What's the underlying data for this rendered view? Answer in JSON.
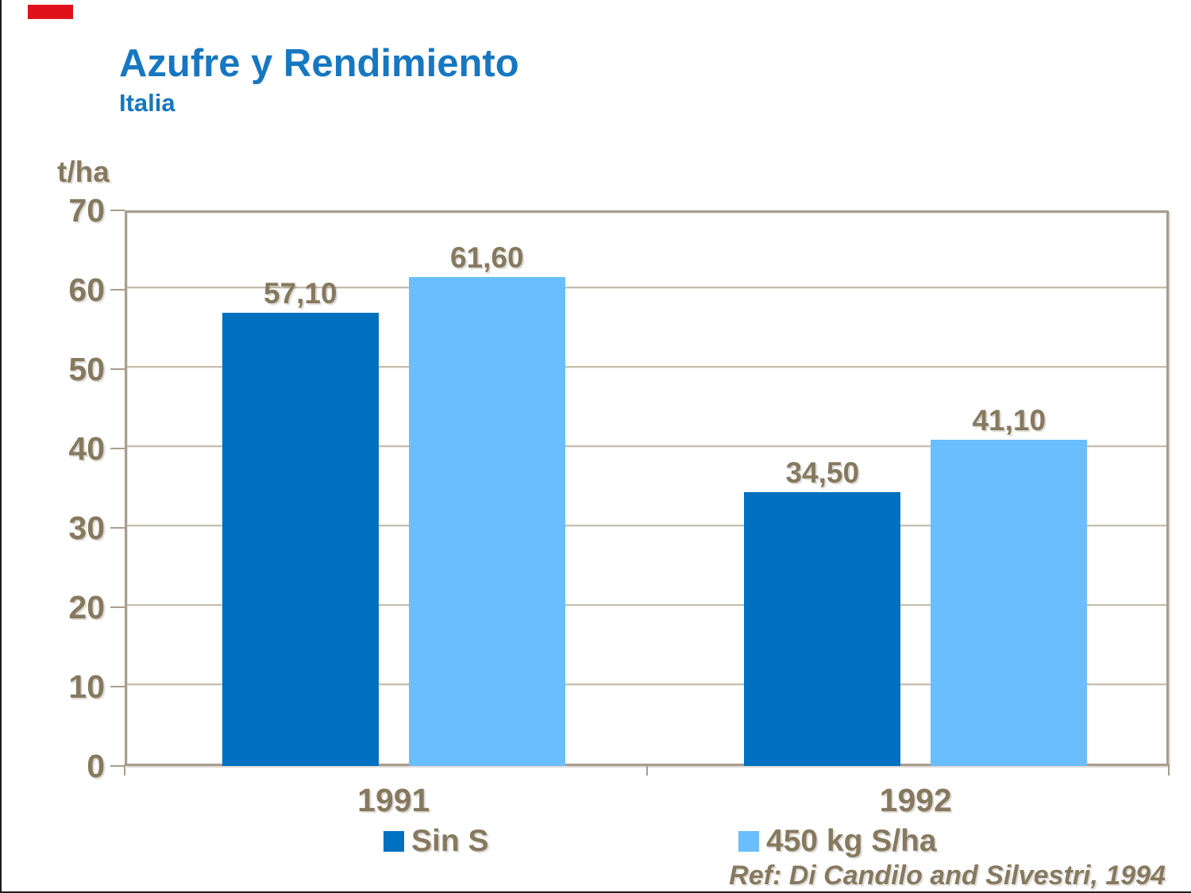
{
  "slide": {
    "title": "Azufre y Rendimiento",
    "subtitle": "Italia",
    "units_label": "t/ha",
    "reference": "Ref: Di Candilo and Silvestri, 1994"
  },
  "colors": {
    "title_blue": "#1677c2",
    "text_taupe": "#86795f",
    "grid": "#c7beaf",
    "axis_border": "#a89d8f",
    "series_dark_blue": "#0070c0",
    "series_light_blue": "#6abefc",
    "red_accent": "#e0111a"
  },
  "chart_data": {
    "type": "bar",
    "categories": [
      "1991",
      "1992"
    ],
    "series": [
      {
        "name": "Sin S",
        "color": "#0070c0",
        "values": [
          57.1,
          34.5
        ],
        "value_labels": [
          "57,10",
          "34,50"
        ]
      },
      {
        "name": "450 kg S/ha",
        "color": "#6abefc",
        "values": [
          61.6,
          41.1
        ],
        "value_labels": [
          "61,60",
          "41,10"
        ]
      }
    ],
    "title": "Azufre y Rendimiento",
    "subtitle": "Italia",
    "xlabel": "",
    "ylabel": "t/ha",
    "ylim": [
      0,
      70
    ],
    "ytick_step": 10,
    "ytick_labels": [
      "0",
      "10",
      "20",
      "30",
      "40",
      "50",
      "60",
      "70"
    ],
    "grid": true,
    "legend_position": "bottom",
    "annotation": "Ref: Di Candilo and Silvestri, 1994"
  },
  "legend": {
    "items": [
      {
        "label": "Sin S",
        "color": "#0070c0"
      },
      {
        "label": "450 kg S/ha",
        "color": "#6abefc"
      }
    ]
  }
}
